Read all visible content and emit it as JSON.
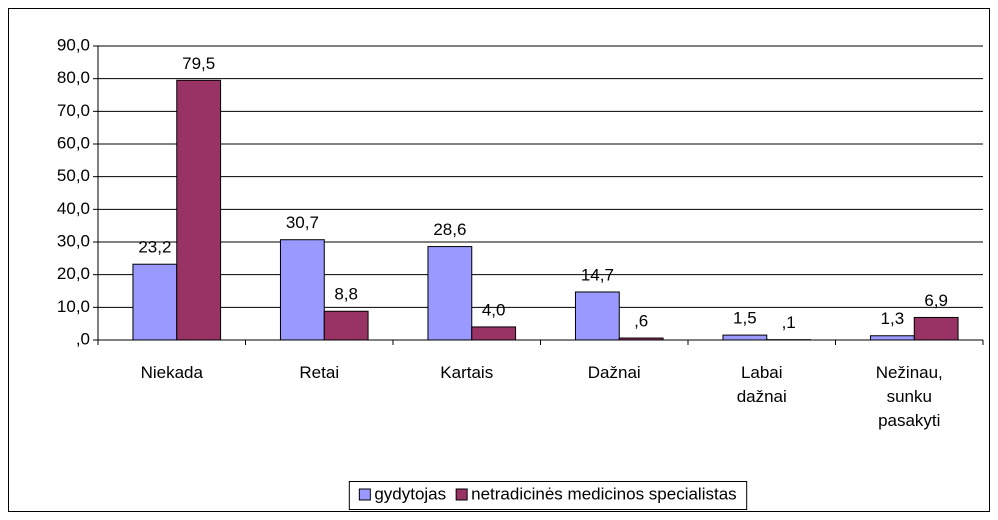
{
  "chart_data": {
    "type": "bar",
    "categories": [
      "Niekada",
      "Retai",
      "Kartais",
      "Dažnai",
      "Labai dažnai",
      "Nežinau, sunku pasakyti"
    ],
    "series": [
      {
        "name": "gydytojas",
        "color": "#9999ff",
        "values": [
          23.2,
          30.7,
          28.6,
          14.7,
          1.5,
          1.3
        ],
        "value_labels": [
          "23,2",
          "30,7",
          "28,6",
          "14,7",
          "1,5",
          "1,3"
        ]
      },
      {
        "name": "netradicinės medicinos specialistas",
        "color": "#993366",
        "values": [
          79.5,
          8.8,
          4.0,
          0.6,
          0.1,
          6.9
        ],
        "value_labels": [
          "79,5",
          "8,8",
          "4,0",
          ",6",
          ",1",
          "6,9"
        ]
      }
    ],
    "ylim": [
      0,
      90
    ],
    "yticks": [
      {
        "value": 0,
        "label": ",0"
      },
      {
        "value": 10,
        "label": "10,0"
      },
      {
        "value": 20,
        "label": "20,0"
      },
      {
        "value": 30,
        "label": "30,0"
      },
      {
        "value": 40,
        "label": "40,0"
      },
      {
        "value": 50,
        "label": "50,0"
      },
      {
        "value": 60,
        "label": "60,0"
      },
      {
        "value": 70,
        "label": "70,0"
      },
      {
        "value": 80,
        "label": "80,0"
      },
      {
        "value": 90,
        "label": "90,0"
      }
    ],
    "grid": true,
    "legend": "bottom"
  }
}
